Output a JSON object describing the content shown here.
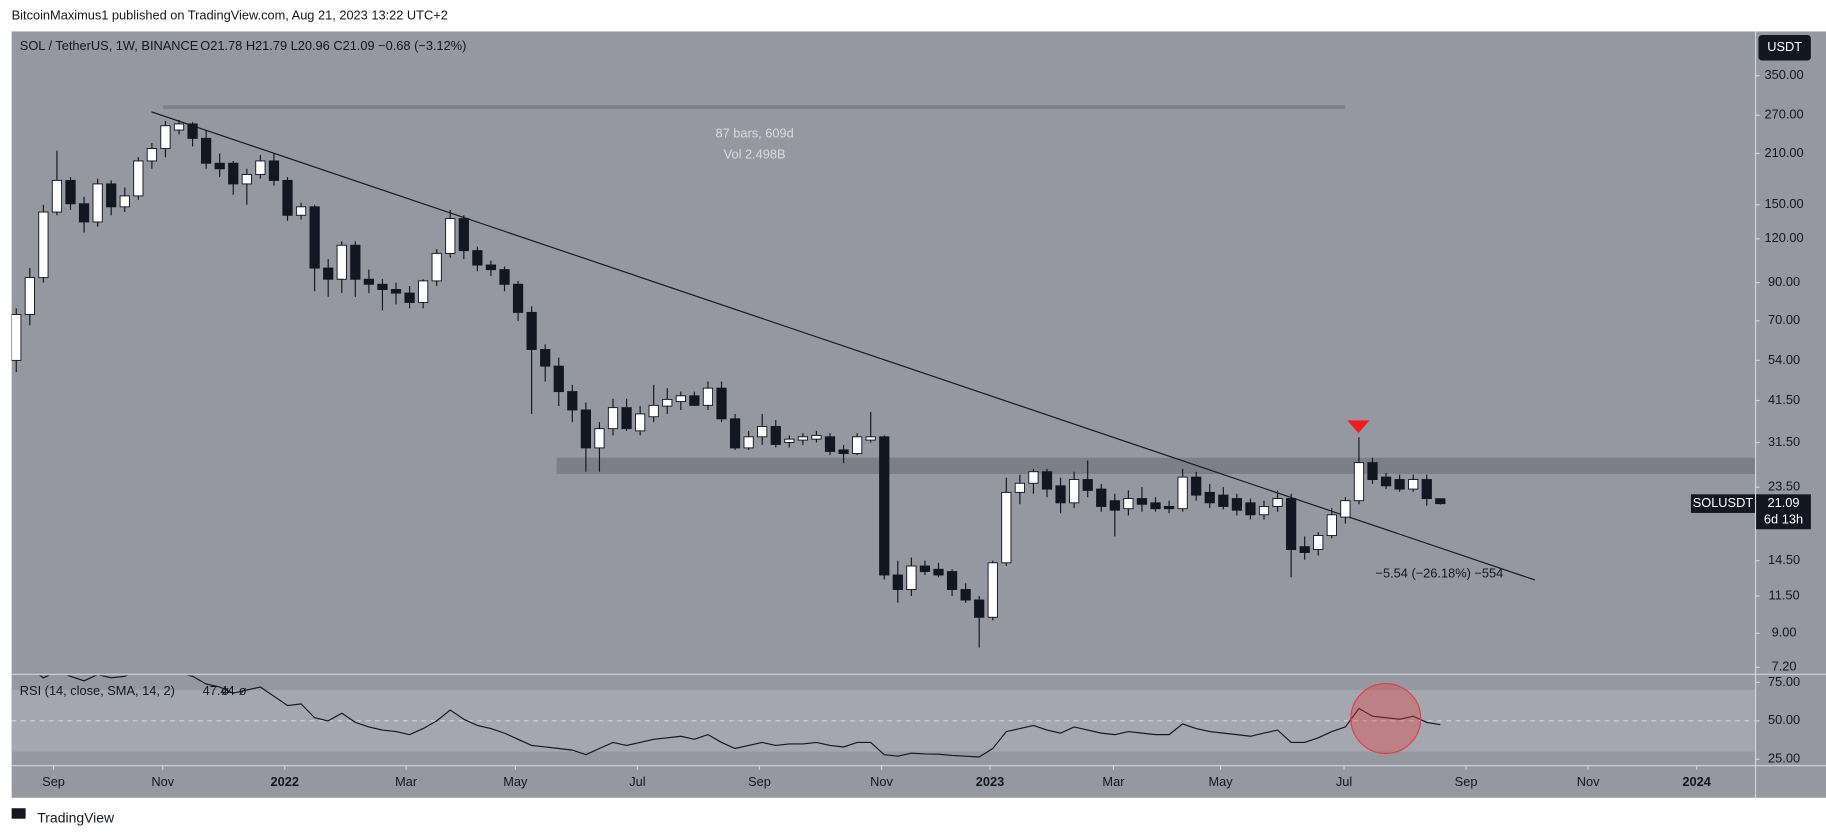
{
  "header": {
    "publisher": "BitcoinMaximus1 published on TradingView.com, Aug 21, 2023 13:22 UTC+2"
  },
  "chart_data": [
    {
      "type": "candlestick",
      "title": "SOL / TetherUS, 1W, BINANCE",
      "ohlc_text": "O21.78 H21.79 L20.96 C21.09 −0.68 (−3.12%)",
      "currency": "USDT",
      "symbol_tag": "SOLUSDT",
      "last_price": 21.09,
      "countdown": "6d 13h",
      "up_color": "#ffffff",
      "down_color": "#131722",
      "open": [
        54,
        73,
        93,
        143,
        176,
        151,
        134,
        172,
        148,
        159,
        200,
        217,
        245,
        255,
        232,
        197,
        197,
        172,
        183,
        200,
        176,
        140,
        148,
        99,
        92,
        115,
        92,
        89,
        86,
        84,
        79,
        91,
        109,
        137,
        111,
        101,
        98,
        89,
        74,
        58,
        52,
        44,
        39,
        30.4,
        34.5,
        39.6,
        34,
        37.3,
        40,
        41.2,
        42.8,
        40.2,
        45,
        36.8,
        30.4,
        32.7,
        35,
        31.5,
        32,
        32.2,
        32.7,
        30,
        29.3,
        32,
        32.7,
        13.2,
        12,
        14,
        13.7,
        13.5,
        12,
        11.2,
        10,
        14.3,
        22.7,
        24.1,
        26,
        23.7,
        21.2,
        24.7,
        23.2,
        21.5,
        20.4,
        21.8,
        21.2,
        20.7,
        20.4,
        25.1,
        22.7,
        22.3,
        21.8,
        21.2,
        19.6,
        20.7,
        21.8,
        15.9,
        15.6,
        17.1,
        19.3,
        21.5,
        27.6,
        25.1,
        24.7,
        23.2,
        24.7,
        21.78
      ],
      "high": [
        76,
        99,
        150,
        214,
        180,
        158,
        178,
        176,
        168,
        205,
        225,
        260,
        262,
        258,
        245,
        210,
        200,
        190,
        208,
        210,
        180,
        152,
        150,
        105,
        118,
        118,
        98,
        92,
        90,
        88,
        92,
        112,
        145,
        140,
        114,
        104,
        100,
        91,
        77,
        60,
        55,
        46,
        41,
        36,
        42,
        42,
        40,
        46,
        45,
        44,
        44,
        47,
        47,
        38,
        34,
        38,
        36.5,
        33,
        33.5,
        34,
        33.5,
        31,
        33.5,
        38.5,
        33,
        14.5,
        14.8,
        14.5,
        14.3,
        13.7,
        12.5,
        11.5,
        14.5,
        25,
        25.5,
        26.5,
        26.5,
        25,
        26,
        28,
        24,
        22.5,
        23,
        23.5,
        22,
        21.5,
        26.5,
        26,
        24,
        23.5,
        22.5,
        21.8,
        21.5,
        23,
        22.5,
        17,
        17.5,
        20.5,
        22,
        32.6,
        28.5,
        25.8,
        25.5,
        25.5,
        25.5,
        21.79
      ],
      "low": [
        50,
        68,
        90,
        140,
        145,
        125,
        130,
        140,
        143,
        155,
        190,
        205,
        238,
        220,
        190,
        180,
        160,
        150,
        178,
        170,
        135,
        136,
        85,
        82,
        84,
        82,
        84,
        75,
        78,
        76,
        76,
        88,
        106,
        105,
        97,
        94,
        85,
        70,
        38,
        47,
        40,
        36,
        26,
        26,
        33,
        34,
        33,
        36,
        38,
        39,
        40,
        39,
        36,
        30,
        30,
        31,
        30.5,
        30.5,
        31,
        31.5,
        29,
        27.5,
        29,
        31.5,
        12.8,
        11,
        11.5,
        13.2,
        13,
        11.5,
        11,
        8.2,
        9.8,
        14,
        21,
        22.5,
        22,
        19.8,
        20.5,
        22,
        20,
        17,
        19.5,
        20,
        20,
        19.8,
        20,
        21.5,
        20.5,
        20.3,
        19.5,
        19,
        19,
        20,
        13,
        14.6,
        15,
        16.8,
        18.5,
        21,
        24,
        23.2,
        22.8,
        22.8,
        20.8,
        20.96
      ],
      "close": [
        73,
        93,
        143,
        176,
        151,
        134,
        172,
        148,
        159,
        200,
        217,
        252,
        255,
        232,
        197,
        190,
        172,
        183,
        200,
        176,
        140,
        148,
        99,
        92,
        115,
        92,
        89,
        86,
        84,
        79,
        91,
        109,
        137,
        111,
        101,
        98,
        89,
        74,
        58,
        52,
        44,
        39,
        30.4,
        34.5,
        39.6,
        34.5,
        38,
        40.2,
        41.8,
        42.8,
        40.2,
        45,
        36.8,
        30.4,
        32.7,
        35,
        31.1,
        32.2,
        32.7,
        33,
        29.7,
        29.3,
        32.7,
        32.7,
        13.2,
        12,
        14,
        13.5,
        13.2,
        12,
        11.2,
        10,
        14.3,
        22.7,
        24.1,
        26,
        23.2,
        21.2,
        24.7,
        23,
        20.7,
        20.2,
        21.8,
        21,
        20.4,
        20.4,
        25.1,
        22.3,
        21.2,
        20.7,
        20.2,
        19.6,
        20.7,
        21.8,
        15.6,
        15.3,
        17.1,
        19.6,
        21.5,
        27.6,
        24.7,
        23.7,
        23.2,
        24.7,
        21.8,
        21.09
      ],
      "xlim": [
        -0.34,
        128.2
      ],
      "xticks": [
        {
          "value": 2.75,
          "label": "Sep"
        },
        {
          "value": 10.8,
          "label": "Nov"
        },
        {
          "value": 19.8,
          "label": "2022"
        },
        {
          "value": 28.75,
          "label": "Mar"
        },
        {
          "value": 36.8,
          "label": "May"
        },
        {
          "value": 45.8,
          "label": "Jul"
        },
        {
          "value": 54.8,
          "label": "Sep"
        },
        {
          "value": 63.8,
          "label": "Nov"
        },
        {
          "value": 71.8,
          "label": "2023"
        },
        {
          "value": 80.9,
          "label": "Mar"
        },
        {
          "value": 88.8,
          "label": "May"
        },
        {
          "value": 97.9,
          "label": "Jul"
        },
        {
          "value": 106.9,
          "label": "Sep"
        },
        {
          "value": 115.9,
          "label": "Nov"
        },
        {
          "value": 123.9,
          "label": "2024"
        }
      ],
      "ylim": [
        6.93,
        468
      ],
      "log_scale": true,
      "yticks": [
        {
          "value": 7.2,
          "label": "7.20"
        },
        {
          "value": 9,
          "label": "9.00"
        },
        {
          "value": 11.5,
          "label": "11.50"
        },
        {
          "value": 14.5,
          "label": "14.50"
        },
        {
          "value": 23.5,
          "label": "23.50"
        },
        {
          "value": 31.5,
          "label": "31.50"
        },
        {
          "value": 41.5,
          "label": "41.50"
        },
        {
          "value": 54,
          "label": "54.00"
        },
        {
          "value": 70,
          "label": "70.00"
        },
        {
          "value": 90,
          "label": "90.00"
        },
        {
          "value": 120,
          "label": "120.00"
        },
        {
          "value": 150,
          "label": "150.00"
        },
        {
          "value": 210,
          "label": "210.00"
        },
        {
          "value": 270,
          "label": "270.00"
        },
        {
          "value": 350,
          "label": "350.00"
        }
      ],
      "annotations": {
        "range_bars": "87 bars, 609d",
        "range_volume": "Vol 2.498B",
        "measure": "−5.54 (−26.18%) −554"
      }
    },
    {
      "type": "line",
      "title": "RSI (14, close, SMA, 14, 2)",
      "last_value": 47.44,
      "na_values": [
        "ø",
        "ø"
      ],
      "color": "#131722",
      "values": [
        80,
        84,
        78,
        82,
        79,
        76,
        80,
        78,
        79,
        83,
        85,
        82,
        81,
        79,
        74,
        72,
        68,
        70,
        72,
        66,
        60,
        61,
        52,
        50,
        55,
        49,
        46,
        44,
        43,
        41,
        45,
        50,
        57,
        51,
        47,
        45,
        42,
        38,
        34,
        33,
        32,
        31,
        28,
        32,
        36,
        34,
        36,
        38,
        39,
        40,
        38,
        41,
        36,
        32,
        34,
        36,
        34,
        35,
        35,
        36,
        34,
        33,
        36,
        36,
        28,
        27,
        29,
        28.5,
        28.3,
        27.5,
        27,
        26.5,
        32,
        43,
        45,
        47,
        44,
        42,
        46,
        44,
        42,
        41,
        43,
        42,
        41,
        41,
        48,
        45,
        43,
        42,
        41,
        40,
        42,
        44,
        36,
        36,
        39,
        43,
        46,
        58,
        53,
        52,
        51,
        53,
        49,
        47.44
      ],
      "xlim": [
        -0.34,
        128.2
      ],
      "ylim": [
        21.2,
        79.5
      ],
      "yticks": [
        {
          "value": 25,
          "label": "25.00"
        },
        {
          "value": 50,
          "label": "50.00"
        },
        {
          "value": 75,
          "label": "75.00"
        }
      ],
      "band": [
        30,
        70
      ],
      "dashed_line": 50
    }
  ],
  "footer": {
    "brand": "TradingView"
  }
}
